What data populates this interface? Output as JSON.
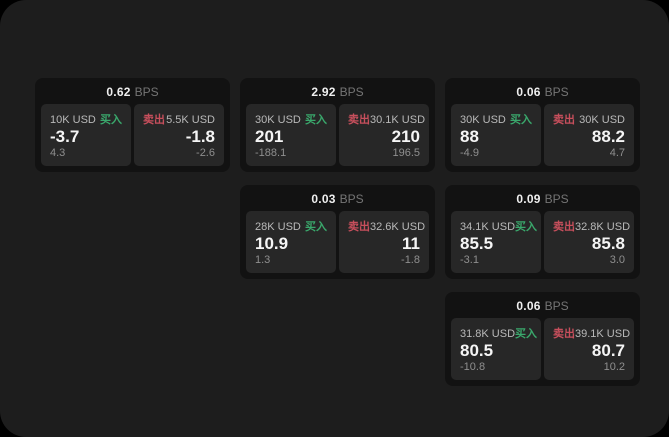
{
  "colors": {
    "background_outer": "#000000",
    "window_bg": "#1d1d1d",
    "card_bg": "#121212",
    "panel_bg": "#272727",
    "buy_green": "#3aa86c",
    "sell_red": "#c74f5c",
    "price_white": "#f5f5f5",
    "muted_gray": "#8f8f8f"
  },
  "cards": [
    {
      "bps_value": "0.62",
      "bps_label": "BPS",
      "buy": {
        "size": "10K USD",
        "side_label": "买入",
        "price": "-3.7",
        "delta": "4.3"
      },
      "sell": {
        "side_label": "卖出",
        "size": "5.5K USD",
        "price": "-1.8",
        "delta": "-2.6"
      }
    },
    {
      "bps_value": "2.92",
      "bps_label": "BPS",
      "buy": {
        "size": "30K USD",
        "side_label": "买入",
        "price": "201",
        "delta": "-188.1"
      },
      "sell": {
        "side_label": "卖出",
        "size": "30.1K USD",
        "price": "210",
        "delta": "196.5"
      }
    },
    {
      "bps_value": "0.06",
      "bps_label": "BPS",
      "buy": {
        "size": "30K USD",
        "side_label": "买入",
        "price": "88",
        "delta": "-4.9"
      },
      "sell": {
        "side_label": "卖出",
        "size": "30K USD",
        "price": "88.2",
        "delta": "4.7"
      }
    },
    {
      "bps_value": "0.03",
      "bps_label": "BPS",
      "buy": {
        "size": "28K USD",
        "side_label": "买入",
        "price": "10.9",
        "delta": "1.3"
      },
      "sell": {
        "side_label": "卖出",
        "size": "32.6K USD",
        "price": "11",
        "delta": "-1.8"
      }
    },
    {
      "bps_value": "0.09",
      "bps_label": "BPS",
      "buy": {
        "size": "34.1K USD",
        "side_label": "买入",
        "price": "85.5",
        "delta": "-3.1"
      },
      "sell": {
        "side_label": "卖出",
        "size": "32.8K USD",
        "price": "85.8",
        "delta": "3.0"
      }
    },
    {
      "bps_value": "0.06",
      "bps_label": "BPS",
      "buy": {
        "size": "31.8K USD",
        "side_label": "买入",
        "price": "80.5",
        "delta": "-10.8"
      },
      "sell": {
        "side_label": "卖出",
        "size": "39.1K USD",
        "price": "80.7",
        "delta": "10.2"
      }
    }
  ]
}
